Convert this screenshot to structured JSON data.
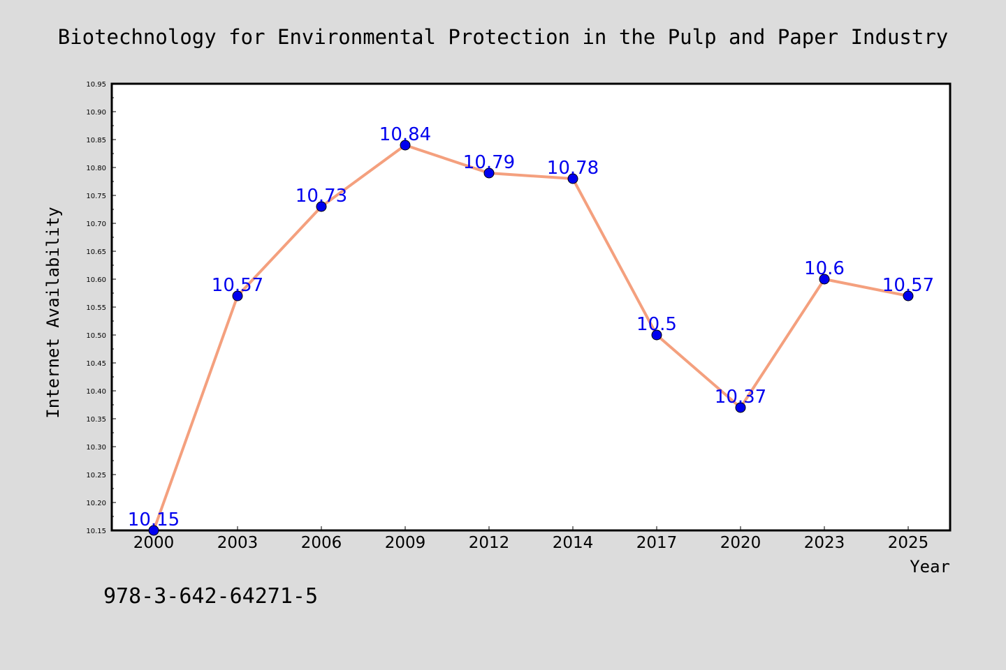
{
  "chart_data": {
    "type": "line",
    "title": "Biotechnology for Environmental Protection in the Pulp and Paper Industry",
    "xlabel": "Year",
    "ylabel": "Internet Availability",
    "categories": [
      "2000",
      "2003",
      "2006",
      "2009",
      "2012",
      "2014",
      "2017",
      "2020",
      "2023",
      "2025"
    ],
    "series": [
      {
        "values": [
          10.15,
          10.57,
          10.73,
          10.84,
          10.79,
          10.78,
          10.5,
          10.37,
          10.6,
          10.57
        ],
        "data_labels": [
          "10.15",
          "10.57",
          "10.73",
          "10.84",
          "10.79",
          "10.78",
          "10.5",
          "10.37",
          "10.6",
          "10.57"
        ],
        "line_color": "#f4a07e",
        "marker_color": "#0000ee",
        "label_color": "#0000ee"
      }
    ],
    "ylim": [
      10.15,
      10.95
    ],
    "yticks": [
      "10.15",
      "10.20",
      "10.25",
      "10.30",
      "10.35",
      "10.40",
      "10.45",
      "10.50",
      "10.55",
      "10.60",
      "10.65",
      "10.70",
      "10.75",
      "10.80",
      "10.85",
      "10.90",
      "10.95"
    ],
    "grid": false,
    "legend": "none"
  },
  "footnote": "978-3-642-64271-5",
  "colors": {
    "background": "#dcdcdc",
    "plot_background": "#ffffff",
    "axis": "#000000"
  }
}
